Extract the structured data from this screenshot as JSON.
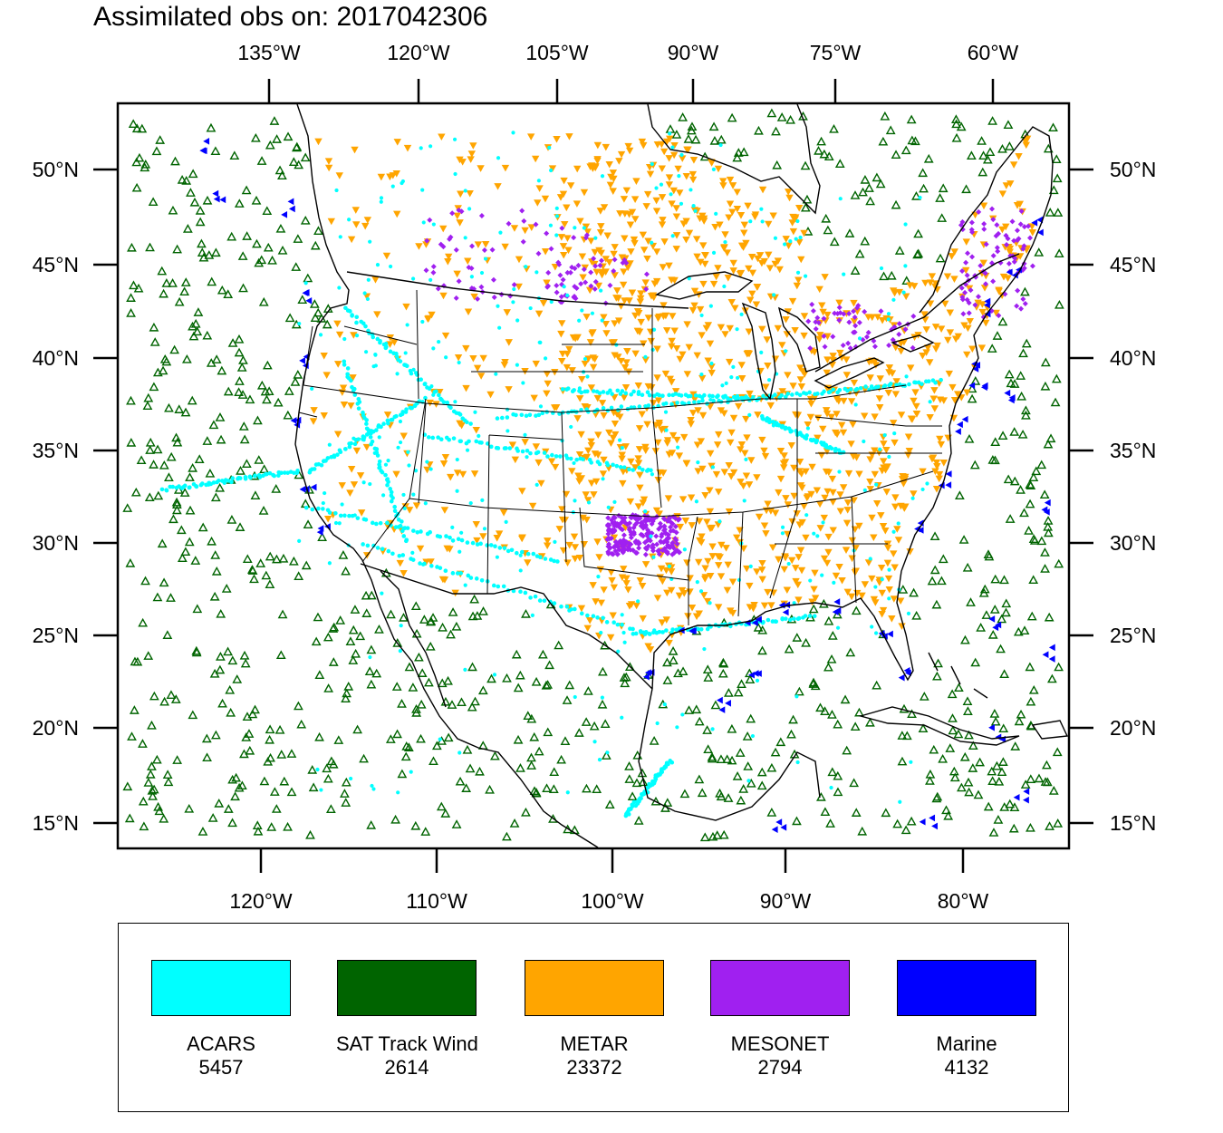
{
  "title": "Assimilated obs on: 2017042306",
  "top_axis_labels": [
    "135°W",
    "120°W",
    "105°W",
    "90°W",
    "75°W",
    "60°W"
  ],
  "bottom_axis_labels": [
    "120°W",
    "110°W",
    "100°W",
    "90°W",
    "80°W"
  ],
  "left_axis_labels": [
    "50°N",
    "45°N",
    "40°N",
    "35°N",
    "30°N",
    "25°N",
    "20°N",
    "15°N"
  ],
  "right_axis_labels": [
    "50°N",
    "45°N",
    "40°N",
    "35°N",
    "30°N",
    "25°N",
    "20°N",
    "15°N"
  ],
  "legend": [
    {
      "name": "ACARS",
      "count": "5457",
      "color": "#00ffff",
      "marker": "dot"
    },
    {
      "name": "SAT Track Wind",
      "count": "2614",
      "color": "#006400",
      "marker": "triangle-up-open"
    },
    {
      "name": "METAR",
      "count": "23372",
      "color": "#ffa500",
      "marker": "triangle-down"
    },
    {
      "name": "MESONET",
      "count": "2794",
      "color": "#a020f0",
      "marker": "diamond"
    },
    {
      "name": "Marine",
      "count": "4132",
      "color": "#0000ff",
      "marker": "triangle-left"
    }
  ],
  "chart_data": {
    "type": "scatter",
    "title": "Assimilated obs on: 2017042306",
    "projection": "lambert-conformal",
    "lon_range": [
      -130,
      -60
    ],
    "lat_range": [
      14,
      53
    ],
    "series": [
      {
        "name": "ACARS",
        "count": 5457
      },
      {
        "name": "SAT Track Wind",
        "count": 2614
      },
      {
        "name": "METAR",
        "count": 23372
      },
      {
        "name": "MESONET",
        "count": 2794
      },
      {
        "name": "Marine",
        "count": 4132
      }
    ]
  }
}
